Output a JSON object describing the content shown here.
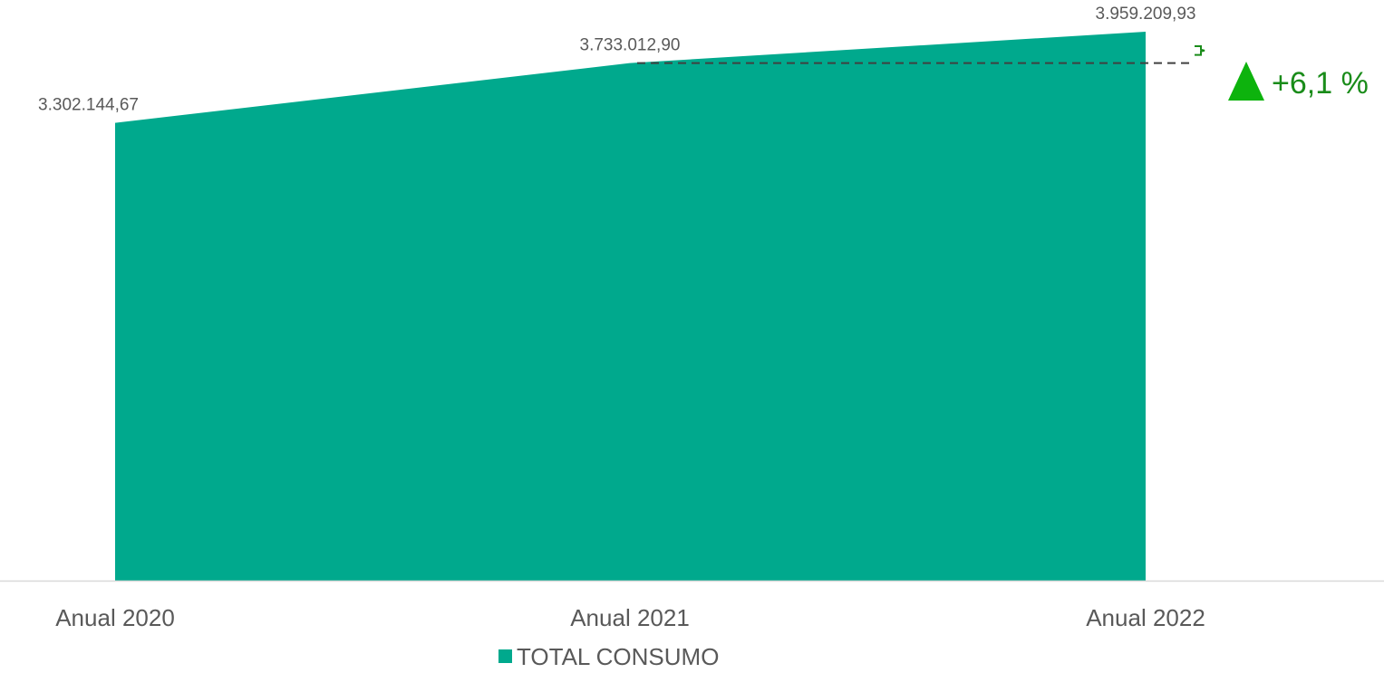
{
  "chart_data": {
    "type": "area",
    "categories": [
      "Anual 2020",
      "Anual 2021",
      "Anual 2022"
    ],
    "series": [
      {
        "name": "TOTAL CONSUMO",
        "values": [
          3302144.67,
          3733012.9,
          3959209.93
        ],
        "labels": [
          "3.302.144,67",
          "3.733.012,90",
          "3.959.209,93"
        ],
        "color": "#00A98D"
      }
    ],
    "ylim": [
      0,
      4000000
    ],
    "grid": false,
    "legend": "bottom-center",
    "annotation": {
      "text": "+6,1 %",
      "direction": "up",
      "from_category": "Anual 2021",
      "to_category": "Anual 2022",
      "color": "#1A8C1A",
      "arrow_color": "#0DB30D",
      "dash_color": "#404040"
    },
    "axis_color": "#D9D9D9"
  }
}
